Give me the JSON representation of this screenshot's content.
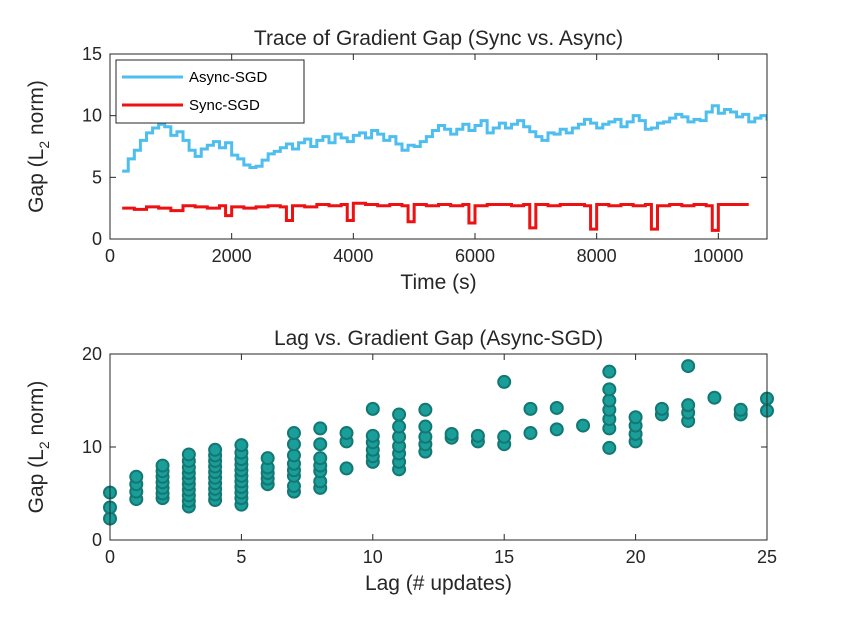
{
  "chart_data": [
    {
      "type": "line",
      "title": "Trace of Gradient Gap (Sync vs. Async)",
      "xlabel": "Time (s)",
      "ylabel_main": "Gap (L",
      "ylabel_sub": "2",
      "ylabel_tail": " norm)",
      "xlim": [
        0,
        10800
      ],
      "ylim": [
        0,
        15
      ],
      "xticks": [
        0,
        2000,
        4000,
        6000,
        8000,
        10000
      ],
      "yticks": [
        0,
        5,
        10,
        15
      ],
      "legend_position": "top-left",
      "series": [
        {
          "name": "Async-SGD",
          "color": "#4DBEEE",
          "x": [
            200,
            300,
            400,
            500,
            600,
            700,
            800,
            900,
            1000,
            1100,
            1200,
            1300,
            1400,
            1500,
            1600,
            1700,
            1800,
            1900,
            2000,
            2100,
            2200,
            2300,
            2400,
            2500,
            2600,
            2700,
            2800,
            2900,
            3000,
            3100,
            3200,
            3300,
            3400,
            3500,
            3600,
            3700,
            3800,
            3900,
            4000,
            4100,
            4200,
            4300,
            4400,
            4500,
            4600,
            4700,
            4800,
            4900,
            5000,
            5100,
            5200,
            5300,
            5400,
            5500,
            5600,
            5700,
            5800,
            5900,
            6000,
            6100,
            6200,
            6300,
            6400,
            6500,
            6600,
            6700,
            6800,
            6900,
            7000,
            7100,
            7200,
            7300,
            7400,
            7500,
            7600,
            7700,
            7800,
            7900,
            8000,
            8100,
            8200,
            8300,
            8400,
            8500,
            8600,
            8700,
            8800,
            8900,
            9000,
            9100,
            9200,
            9300,
            9400,
            9500,
            9600,
            9700,
            9800,
            9900,
            10000,
            10100,
            10200,
            10300,
            10400,
            10500,
            10600,
            10700,
            10800
          ],
          "y": [
            5.5,
            6.5,
            7.2,
            8.0,
            8.6,
            9.0,
            9.3,
            9.1,
            8.4,
            8.7,
            8.0,
            7.2,
            6.7,
            7.3,
            7.6,
            7.9,
            7.4,
            7.8,
            6.8,
            6.5,
            6.0,
            5.8,
            5.9,
            6.4,
            6.9,
            7.1,
            7.4,
            7.7,
            7.3,
            7.8,
            8.1,
            7.5,
            8.0,
            8.3,
            7.8,
            8.5,
            8.2,
            7.9,
            8.4,
            8.6,
            8.2,
            8.8,
            8.5,
            8.0,
            8.3,
            7.7,
            7.2,
            7.6,
            7.5,
            7.9,
            8.3,
            8.8,
            9.2,
            8.9,
            8.5,
            8.9,
            9.3,
            8.8,
            9.2,
            9.6,
            8.6,
            9.0,
            9.4,
            9.0,
            9.3,
            9.6,
            9.1,
            8.7,
            8.3,
            8.0,
            8.6,
            8.5,
            8.9,
            8.6,
            9.0,
            9.3,
            9.7,
            9.4,
            9.0,
            9.3,
            9.5,
            9.7,
            9.1,
            9.5,
            10.0,
            9.6,
            8.9,
            9.0,
            9.4,
            9.5,
            9.8,
            10.1,
            9.9,
            9.5,
            9.7,
            9.6,
            10.3,
            10.8,
            10.2,
            10.5,
            10.3,
            9.9,
            10.1,
            9.5,
            9.8,
            10.0,
            9.6
          ]
        },
        {
          "name": "Sync-SGD",
          "color": "#EE1111",
          "x": [
            200,
            400,
            600,
            800,
            1000,
            1200,
            1400,
            1600,
            1800,
            1900,
            2000,
            2200,
            2400,
            2600,
            2800,
            2900,
            3000,
            3200,
            3400,
            3600,
            3800,
            3900,
            4000,
            4200,
            4400,
            4600,
            4800,
            4900,
            5000,
            5200,
            5400,
            5600,
            5800,
            5900,
            6000,
            6200,
            6400,
            6600,
            6800,
            6900,
            7000,
            7200,
            7400,
            7600,
            7800,
            7900,
            8000,
            8200,
            8400,
            8600,
            8800,
            8900,
            9000,
            9200,
            9400,
            9600,
            9800,
            9900,
            10000,
            10200,
            10400
          ],
          "y": [
            2.5,
            2.4,
            2.6,
            2.5,
            2.3,
            2.7,
            2.6,
            2.5,
            2.7,
            1.9,
            2.6,
            2.5,
            2.6,
            2.7,
            2.6,
            1.5,
            2.7,
            2.6,
            2.8,
            2.7,
            2.8,
            1.5,
            2.9,
            2.8,
            2.7,
            2.8,
            2.7,
            1.4,
            2.8,
            2.7,
            2.8,
            2.7,
            2.8,
            1.3,
            2.7,
            2.8,
            2.8,
            2.7,
            2.8,
            0.9,
            2.8,
            2.7,
            2.8,
            2.8,
            2.7,
            0.8,
            2.8,
            2.7,
            2.8,
            2.7,
            2.8,
            0.8,
            2.7,
            2.8,
            2.7,
            2.8,
            2.7,
            0.7,
            2.8,
            2.8,
            2.8
          ]
        }
      ]
    },
    {
      "type": "scatter",
      "title": "Lag vs. Gradient Gap (Async-SGD)",
      "xlabel": "Lag (# updates)",
      "ylabel_main": "Gap (L",
      "ylabel_sub": "2",
      "ylabel_tail": " norm)",
      "xlim": [
        0,
        25
      ],
      "ylim": [
        0,
        20
      ],
      "xticks": [
        0,
        5,
        10,
        15,
        20,
        25
      ],
      "yticks": [
        0,
        10,
        20
      ],
      "marker_color": "#1A9E9A",
      "marker_edge": "#137873",
      "points": [
        [
          0,
          2.3
        ],
        [
          0,
          3.5
        ],
        [
          0,
          5.1
        ],
        [
          1,
          4.4
        ],
        [
          1,
          5.2
        ],
        [
          1,
          6.0
        ],
        [
          1,
          6.8
        ],
        [
          2,
          4.5
        ],
        [
          2,
          5.0
        ],
        [
          2,
          5.6
        ],
        [
          2,
          6.2
        ],
        [
          2,
          6.8
        ],
        [
          2,
          7.4
        ],
        [
          2,
          8.0
        ],
        [
          3,
          3.6
        ],
        [
          3,
          4.2
        ],
        [
          3,
          4.8
        ],
        [
          3,
          5.4
        ],
        [
          3,
          6.0
        ],
        [
          3,
          6.6
        ],
        [
          3,
          7.2
        ],
        [
          3,
          7.8
        ],
        [
          3,
          8.5
        ],
        [
          3,
          9.2
        ],
        [
          4,
          4.3
        ],
        [
          4,
          4.9
        ],
        [
          4,
          5.5
        ],
        [
          4,
          6.1
        ],
        [
          4,
          6.7
        ],
        [
          4,
          7.3
        ],
        [
          4,
          7.9
        ],
        [
          4,
          8.5
        ],
        [
          4,
          9.1
        ],
        [
          4,
          9.7
        ],
        [
          5,
          3.8
        ],
        [
          5,
          4.5
        ],
        [
          5,
          5.1
        ],
        [
          5,
          5.7
        ],
        [
          5,
          6.3
        ],
        [
          5,
          6.9
        ],
        [
          5,
          7.5
        ],
        [
          5,
          8.1
        ],
        [
          5,
          8.7
        ],
        [
          5,
          9.4
        ],
        [
          5,
          10.2
        ],
        [
          6,
          6.0
        ],
        [
          6,
          6.6
        ],
        [
          6,
          7.2
        ],
        [
          6,
          7.8
        ],
        [
          6,
          8.8
        ],
        [
          7,
          5.2
        ],
        [
          7,
          5.8
        ],
        [
          7,
          6.9
        ],
        [
          7,
          7.5
        ],
        [
          7,
          8.2
        ],
        [
          7,
          9.1
        ],
        [
          7,
          10.3
        ],
        [
          7,
          11.5
        ],
        [
          8,
          5.6
        ],
        [
          8,
          6.3
        ],
        [
          8,
          7.4
        ],
        [
          8,
          8.0
        ],
        [
          8,
          8.8
        ],
        [
          8,
          10.3
        ],
        [
          8,
          12.0
        ],
        [
          9,
          7.7
        ],
        [
          9,
          10.6
        ],
        [
          9,
          11.5
        ],
        [
          10,
          8.4
        ],
        [
          10,
          9.0
        ],
        [
          10,
          9.7
        ],
        [
          10,
          10.5
        ],
        [
          10,
          11.2
        ],
        [
          10,
          14.1
        ],
        [
          11,
          7.6
        ],
        [
          11,
          8.4
        ],
        [
          11,
          9.3
        ],
        [
          11,
          10.1
        ],
        [
          11,
          11.1
        ],
        [
          11,
          12.2
        ],
        [
          11,
          13.5
        ],
        [
          12,
          9.5
        ],
        [
          12,
          10.3
        ],
        [
          12,
          11.1
        ],
        [
          12,
          12.2
        ],
        [
          12,
          14.0
        ],
        [
          13,
          11.0
        ],
        [
          13,
          11.4
        ],
        [
          14,
          10.6
        ],
        [
          14,
          11.2
        ],
        [
          15,
          10.3
        ],
        [
          15,
          11.1
        ],
        [
          15,
          17.0
        ],
        [
          16,
          11.5
        ],
        [
          16,
          14.1
        ],
        [
          17,
          11.9
        ],
        [
          17,
          14.2
        ],
        [
          18,
          12.3
        ],
        [
          19,
          9.9
        ],
        [
          19,
          12.0
        ],
        [
          19,
          13.0
        ],
        [
          19,
          14.0
        ],
        [
          19,
          15.0
        ],
        [
          19,
          16.2
        ],
        [
          19,
          18.1
        ],
        [
          20,
          10.6
        ],
        [
          20,
          11.4
        ],
        [
          20,
          12.3
        ],
        [
          20,
          13.2
        ],
        [
          21,
          13.5
        ],
        [
          21,
          14.1
        ],
        [
          22,
          12.8
        ],
        [
          22,
          13.7
        ],
        [
          22,
          14.5
        ],
        [
          22,
          18.7
        ],
        [
          23,
          15.3
        ],
        [
          24,
          13.5
        ],
        [
          24,
          14.0
        ],
        [
          25,
          13.9
        ],
        [
          25,
          15.2
        ]
      ]
    }
  ]
}
